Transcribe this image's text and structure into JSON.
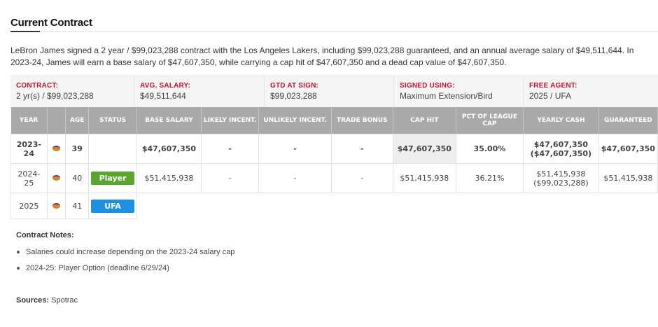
{
  "section_title": "Current Contract",
  "summary": "LeBron James signed a 2 year / $99,023,288 contract with the Los Angeles Lakers, including $99,023,288 guaranteed, and an annual average salary of $49,511,644. In 2023-24, James will earn a base salary of $47,607,350, while carrying a cap hit of $47,607,350 and a dead cap value of $47,607,350.",
  "contract_bar": {
    "contract_label": "CONTRACT:",
    "contract_value": "2 yr(s) / $99,023,288",
    "avg_label": "AVG. SALARY:",
    "avg_value": "$49,511,644",
    "gtd_label": "GTD AT SIGN:",
    "gtd_value": "$99,023,288",
    "signed_label": "SIGNED USING:",
    "signed_value": "Maximum Extension/Bird",
    "fa_label": "FREE AGENT:",
    "fa_value": "2025 / UFA"
  },
  "table": {
    "headers": {
      "year": "YEAR",
      "age": "AGE",
      "status": "STATUS",
      "base": "BASE SALARY",
      "likely": "LIKELY INCENT.",
      "unlikely": "UNLIKELY INCENT.",
      "trade": "TRADE BONUS",
      "cap": "CAP HIT",
      "pct": "PCT OF LEAGUE CAP",
      "yearly": "YEARLY CASH",
      "guaranteed": "GUARANTEED"
    },
    "team_icon": "lakers-logo-icon",
    "rows": [
      {
        "year": "2023-24",
        "age": "39",
        "status": "",
        "base": "$47,607,350",
        "likely": "-",
        "unlikely": "-",
        "trade": "-",
        "cap": "$47,607,350",
        "pct": "35.00%",
        "yearly_1": "$47,607,350",
        "yearly_2": "($47,607,350)",
        "guaranteed": "$47,607,350"
      },
      {
        "year": "2024-25",
        "age": "40",
        "status": "Player",
        "base": "$51,415,938",
        "likely": "-",
        "unlikely": "-",
        "trade": "-",
        "cap": "$51,415,938",
        "pct": "36.21%",
        "yearly_1": "$51,415,938",
        "yearly_2": "($99,023,288)",
        "guaranteed": "$51,415,938"
      },
      {
        "year": "2025",
        "age": "41",
        "status": "UFA"
      }
    ]
  },
  "notes": {
    "title": "Contract Notes:",
    "items": [
      "Salaries could increase depending on the 2023-24 salary cap",
      "2024-25: Player Option (deadline 6/29/24)"
    ]
  },
  "sources": {
    "label": "Sources:",
    "value": " Spotrac"
  },
  "colors": {
    "accent_red": "#c8102e",
    "player_option_green": "#5aa52e",
    "ufa_blue": "#1e90e0",
    "value_green": "#4f9f3f",
    "header_gray": "#a9a9a9"
  }
}
